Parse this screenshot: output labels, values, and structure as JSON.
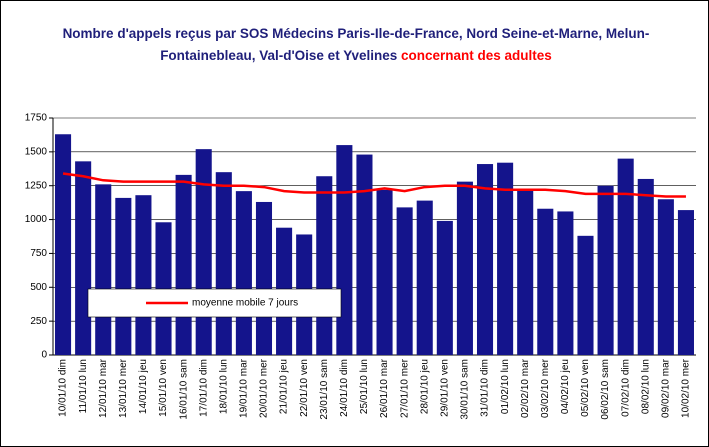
{
  "chart_data": {
    "type": "bar",
    "title": "Nombre d'appels reçus par SOS Médecins Paris-Ile-de-France, Nord Seine-et-Marne, Melun-Fontainebleau, Val-d'Oise et Yvelines",
    "title_highlight": "concernant des adultes",
    "categories": [
      "10/01/10 dim",
      "11/01/10 lun",
      "12/01/10 mar",
      "13/01/10 mer",
      "14/01/10 jeu",
      "15/01/10 ven",
      "16/01/10 sam",
      "17/01/10 dim",
      "18/01/10 lun",
      "19/01/10 mar",
      "20/01/10 mer",
      "21/01/10 jeu",
      "22/01/10 ven",
      "23/01/10 sam",
      "24/01/10 dim",
      "25/01/10 lun",
      "26/01/10 mar",
      "27/01/10 mer",
      "28/01/10 jeu",
      "29/01/10 ven",
      "30/01/10 sam",
      "31/01/10 dim",
      "01/02/10 lun",
      "02/02/10 mar",
      "03/02/10 mer",
      "04/02/10 jeu",
      "05/02/10 ven",
      "06/02/10 sam",
      "07/02/10 dim",
      "08/02/10 lun",
      "09/02/10 mar",
      "10/02/10 mer"
    ],
    "series": [
      {
        "type": "bar",
        "color": "#14148c",
        "values": [
          1630,
          1430,
          1260,
          1160,
          1180,
          980,
          1330,
          1520,
          1350,
          1210,
          1130,
          940,
          890,
          1320,
          1550,
          1480,
          1220,
          1090,
          1140,
          990,
          1280,
          1410,
          1420,
          1220,
          1080,
          1060,
          880,
          1250,
          1450,
          1300,
          1150,
          1070
        ]
      },
      {
        "type": "line",
        "name": "moyenne mobile 7 jours",
        "color": "#ff0000",
        "values": [
          1340,
          1320,
          1290,
          1280,
          1280,
          1280,
          1280,
          1260,
          1250,
          1250,
          1240,
          1210,
          1200,
          1200,
          1200,
          1210,
          1230,
          1210,
          1240,
          1250,
          1250,
          1230,
          1220,
          1220,
          1220,
          1210,
          1190,
          1190,
          1190,
          1180,
          1170,
          1170
        ]
      }
    ],
    "ylim": [
      0,
      1750
    ],
    "yticks": [
      0,
      250,
      500,
      750,
      1000,
      1250,
      1500,
      1750
    ],
    "grid": true,
    "legend": "bottom-left"
  }
}
